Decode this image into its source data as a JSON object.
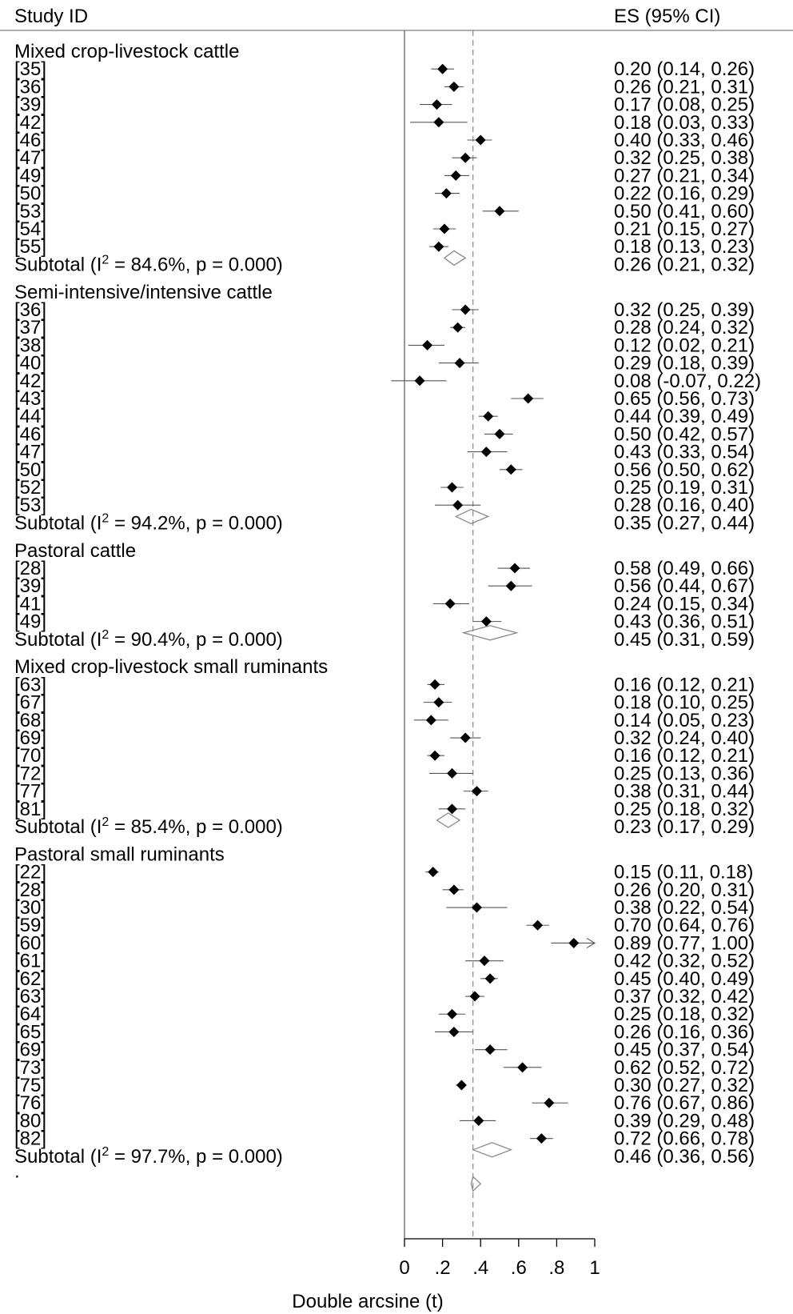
{
  "chart_data": {
    "type": "forest",
    "columns": {
      "study": "Study ID",
      "effect": "ES (95% CI)"
    },
    "xlabel": "Double arcsine (t)",
    "xlim": [
      -0.07,
      1.0
    ],
    "x_ticks": [
      {
        "value": 0,
        "label": "0"
      },
      {
        "value": 0.2,
        "label": ".2"
      },
      {
        "value": 0.4,
        "label": ".4"
      },
      {
        "value": 0.6,
        "label": ".6"
      },
      {
        "value": 0.8,
        "label": ".8"
      },
      {
        "value": 1,
        "label": "1"
      }
    ],
    "null_line": 0,
    "overall_line": 0.36,
    "overall": {
      "label": ".",
      "es": 0.36
    },
    "groups": [
      {
        "name": "Mixed crop-livestock cattle",
        "studies": [
          {
            "id": "[35]",
            "es": 0.2,
            "lo": 0.14,
            "hi": 0.26,
            "text": "0.20 (0.14, 0.26)"
          },
          {
            "id": "[36]",
            "es": 0.26,
            "lo": 0.21,
            "hi": 0.31,
            "text": "0.26 (0.21, 0.31)"
          },
          {
            "id": "[39]",
            "es": 0.17,
            "lo": 0.08,
            "hi": 0.25,
            "text": "0.17 (0.08, 0.25)"
          },
          {
            "id": "[42]",
            "es": 0.18,
            "lo": 0.03,
            "hi": 0.33,
            "text": "0.18 (0.03, 0.33)"
          },
          {
            "id": "[46]",
            "es": 0.4,
            "lo": 0.33,
            "hi": 0.46,
            "text": "0.40 (0.33, 0.46)"
          },
          {
            "id": "[47]",
            "es": 0.32,
            "lo": 0.25,
            "hi": 0.38,
            "text": "0.32 (0.25, 0.38)"
          },
          {
            "id": "[49]",
            "es": 0.27,
            "lo": 0.21,
            "hi": 0.34,
            "text": "0.27 (0.21, 0.34)"
          },
          {
            "id": "[50]",
            "es": 0.22,
            "lo": 0.16,
            "hi": 0.29,
            "text": "0.22 (0.16, 0.29)"
          },
          {
            "id": "[53]",
            "es": 0.5,
            "lo": 0.41,
            "hi": 0.6,
            "text": "0.50 (0.41, 0.60)"
          },
          {
            "id": "[54]",
            "es": 0.21,
            "lo": 0.15,
            "hi": 0.27,
            "text": "0.21 (0.15, 0.27)"
          },
          {
            "id": "[55]",
            "es": 0.18,
            "lo": 0.13,
            "hi": 0.23,
            "text": "0.18 (0.13, 0.23)"
          }
        ],
        "subtotal": {
          "label": "Subtotal (I",
          "sup": "2",
          "label_rest": " = 84.6%, p = 0.000)",
          "es": 0.26,
          "lo": 0.21,
          "hi": 0.32,
          "text": "0.26 (0.21, 0.32)"
        }
      },
      {
        "name": "Semi-intensive/intensive cattle",
        "studies": [
          {
            "id": "[36]",
            "es": 0.32,
            "lo": 0.25,
            "hi": 0.39,
            "text": "0.32 (0.25, 0.39)"
          },
          {
            "id": "[37]",
            "es": 0.28,
            "lo": 0.24,
            "hi": 0.32,
            "text": "0.28 (0.24, 0.32)"
          },
          {
            "id": "[38]",
            "es": 0.12,
            "lo": 0.02,
            "hi": 0.21,
            "text": "0.12 (0.02, 0.21)"
          },
          {
            "id": "[40]",
            "es": 0.29,
            "lo": 0.18,
            "hi": 0.39,
            "text": "0.29 (0.18, 0.39)"
          },
          {
            "id": "[42]",
            "es": 0.08,
            "lo": -0.07,
            "hi": 0.22,
            "text": "0.08 (-0.07, 0.22)"
          },
          {
            "id": "[43]",
            "es": 0.65,
            "lo": 0.56,
            "hi": 0.73,
            "text": "0.65 (0.56, 0.73)"
          },
          {
            "id": "[44]",
            "es": 0.44,
            "lo": 0.39,
            "hi": 0.49,
            "text": "0.44 (0.39, 0.49)"
          },
          {
            "id": "[46]",
            "es": 0.5,
            "lo": 0.42,
            "hi": 0.57,
            "text": "0.50 (0.42, 0.57)"
          },
          {
            "id": "[47]",
            "es": 0.43,
            "lo": 0.33,
            "hi": 0.54,
            "text": "0.43 (0.33, 0.54)"
          },
          {
            "id": "[50]",
            "es": 0.56,
            "lo": 0.5,
            "hi": 0.62,
            "text": "0.56 (0.50, 0.62)"
          },
          {
            "id": "[52]",
            "es": 0.25,
            "lo": 0.19,
            "hi": 0.31,
            "text": "0.25 (0.19, 0.31)"
          },
          {
            "id": "[53]",
            "es": 0.28,
            "lo": 0.16,
            "hi": 0.4,
            "text": "0.28 (0.16, 0.40)"
          }
        ],
        "subtotal": {
          "label": "Subtotal (I",
          "sup": "2",
          "label_rest": " = 94.2%, p = 0.000)",
          "es": 0.35,
          "lo": 0.27,
          "hi": 0.44,
          "text": "0.35 (0.27, 0.44)"
        }
      },
      {
        "name": "Pastoral cattle",
        "studies": [
          {
            "id": "[28]",
            "es": 0.58,
            "lo": 0.49,
            "hi": 0.66,
            "text": "0.58 (0.49, 0.66)"
          },
          {
            "id": "[39]",
            "es": 0.56,
            "lo": 0.44,
            "hi": 0.67,
            "text": "0.56 (0.44, 0.67)"
          },
          {
            "id": "[41]",
            "es": 0.24,
            "lo": 0.15,
            "hi": 0.34,
            "text": "0.24 (0.15, 0.34)"
          },
          {
            "id": "[49]",
            "es": 0.43,
            "lo": 0.36,
            "hi": 0.51,
            "text": "0.43 (0.36, 0.51)"
          }
        ],
        "subtotal": {
          "label": "Subtotal (I",
          "sup": "2",
          "label_rest": " = 90.4%, p = 0.000)",
          "es": 0.45,
          "lo": 0.31,
          "hi": 0.59,
          "text": "0.45 (0.31, 0.59)"
        }
      },
      {
        "name": "Mixed crop-livestock small ruminants",
        "studies": [
          {
            "id": "[63]",
            "es": 0.16,
            "lo": 0.12,
            "hi": 0.21,
            "text": "0.16 (0.12, 0.21)"
          },
          {
            "id": "[67]",
            "es": 0.18,
            "lo": 0.1,
            "hi": 0.25,
            "text": "0.18 (0.10, 0.25)"
          },
          {
            "id": "[68]",
            "es": 0.14,
            "lo": 0.05,
            "hi": 0.23,
            "text": "0.14 (0.05, 0.23)"
          },
          {
            "id": "[69]",
            "es": 0.32,
            "lo": 0.24,
            "hi": 0.4,
            "text": "0.32 (0.24, 0.40)"
          },
          {
            "id": "[70]",
            "es": 0.16,
            "lo": 0.12,
            "hi": 0.21,
            "text": "0.16 (0.12, 0.21)"
          },
          {
            "id": "[72]",
            "es": 0.25,
            "lo": 0.13,
            "hi": 0.36,
            "text": "0.25 (0.13, 0.36)"
          },
          {
            "id": "[77]",
            "es": 0.38,
            "lo": 0.31,
            "hi": 0.44,
            "text": "0.38 (0.31, 0.44)"
          },
          {
            "id": "[81]",
            "es": 0.25,
            "lo": 0.18,
            "hi": 0.32,
            "text": "0.25 (0.18, 0.32)"
          }
        ],
        "subtotal": {
          "label": "Subtotal (I",
          "sup": "2",
          "label_rest": " = 85.4%, p = 0.000)",
          "es": 0.23,
          "lo": 0.17,
          "hi": 0.29,
          "text": "0.23 (0.17, 0.29)"
        }
      },
      {
        "name": "Pastoral small ruminants",
        "studies": [
          {
            "id": "[22]",
            "es": 0.15,
            "lo": 0.11,
            "hi": 0.18,
            "text": "0.15 (0.11, 0.18)"
          },
          {
            "id": "[28]",
            "es": 0.26,
            "lo": 0.2,
            "hi": 0.31,
            "text": "0.26 (0.20, 0.31)"
          },
          {
            "id": "[30]",
            "es": 0.38,
            "lo": 0.22,
            "hi": 0.54,
            "text": "0.38 (0.22, 0.54)"
          },
          {
            "id": "[59]",
            "es": 0.7,
            "lo": 0.64,
            "hi": 0.76,
            "text": "0.70 (0.64, 0.76)"
          },
          {
            "id": "[60]",
            "es": 0.89,
            "lo": 0.77,
            "hi": 1.0,
            "text": "0.89 (0.77, 1.00)"
          },
          {
            "id": "[61]",
            "es": 0.42,
            "lo": 0.32,
            "hi": 0.52,
            "text": "0.42 (0.32, 0.52)"
          },
          {
            "id": "[62]",
            "es": 0.45,
            "lo": 0.4,
            "hi": 0.49,
            "text": "0.45 (0.40, 0.49)"
          },
          {
            "id": "[63]",
            "es": 0.37,
            "lo": 0.32,
            "hi": 0.42,
            "text": "0.37 (0.32, 0.42)"
          },
          {
            "id": "[64]",
            "es": 0.25,
            "lo": 0.18,
            "hi": 0.32,
            "text": "0.25 (0.18, 0.32)"
          },
          {
            "id": "[65]",
            "es": 0.26,
            "lo": 0.16,
            "hi": 0.36,
            "text": "0.26 (0.16, 0.36)"
          },
          {
            "id": "[69]",
            "es": 0.45,
            "lo": 0.37,
            "hi": 0.54,
            "text": "0.45 (0.37, 0.54)"
          },
          {
            "id": "[73]",
            "es": 0.62,
            "lo": 0.52,
            "hi": 0.72,
            "text": "0.62 (0.52, 0.72)"
          },
          {
            "id": "[75]",
            "es": 0.3,
            "lo": 0.27,
            "hi": 0.32,
            "text": "0.30 (0.27, 0.32)"
          },
          {
            "id": "[76]",
            "es": 0.76,
            "lo": 0.67,
            "hi": 0.86,
            "text": "0.76 (0.67, 0.86)"
          },
          {
            "id": "[80]",
            "es": 0.39,
            "lo": 0.29,
            "hi": 0.48,
            "text": "0.39 (0.29, 0.48)"
          },
          {
            "id": "[82]",
            "es": 0.72,
            "lo": 0.66,
            "hi": 0.78,
            "text": "0.72 (0.66, 0.78)"
          }
        ],
        "subtotal": {
          "label": "Subtotal (I",
          "sup": "2",
          "label_rest": " = 97.7%, p = 0.000)",
          "es": 0.46,
          "lo": 0.36,
          "hi": 0.56,
          "text": "0.46 (0.36, 0.56)"
        }
      }
    ]
  }
}
